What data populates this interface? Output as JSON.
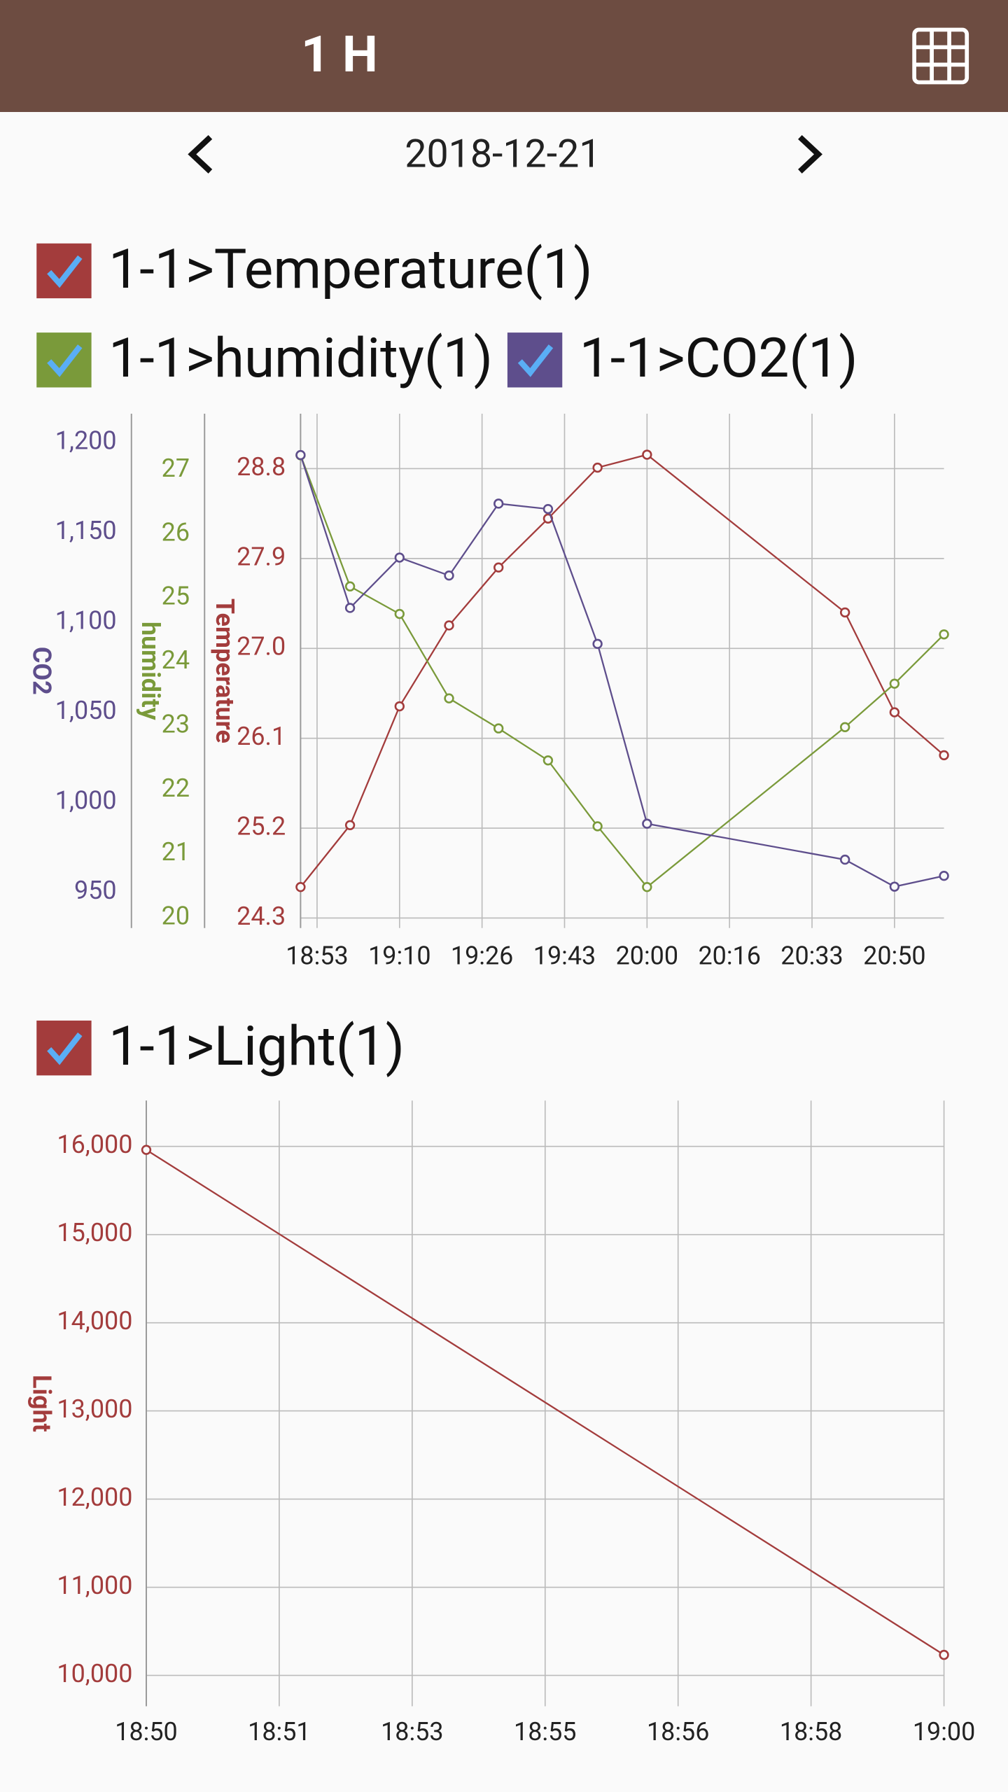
{
  "header": {
    "title": "1 H"
  },
  "date": "2018-12-21",
  "chart_data": [
    {
      "type": "line",
      "x": [
        "18:50",
        "19:00",
        "19:10",
        "19:20",
        "19:30",
        "19:40",
        "19:50",
        "20:00",
        "20:40",
        "20:50",
        "21:00"
      ],
      "xlim": [
        "18:50",
        "21:00"
      ],
      "xticks": [
        {
          "value": "18:53:20",
          "label": "18:53"
        },
        "19:10",
        {
          "value": "19:26:40",
          "label": "19:26"
        },
        {
          "value": "19:43:20",
          "label": "19:43"
        },
        "20:00",
        {
          "value": "20:16:40",
          "label": "20:16"
        },
        {
          "value": "20:33:20",
          "label": "20:33"
        },
        "20:50"
      ],
      "grid": true,
      "series": [
        {
          "name": "1-1>Temperature(1)",
          "color": "#a33c3c",
          "axis_label": "Temperature",
          "ylim": [
            24.2,
            29.35
          ],
          "yticks": [
            24.3,
            25.2,
            26.1,
            {
              "value": 27,
              "label": "27.0"
            },
            27.9,
            28.8
          ],
          "values": [
            24.61,
            25.23,
            26.42,
            27.23,
            27.81,
            28.3,
            28.81,
            28.94,
            27.36,
            26.36,
            25.93
          ]
        },
        {
          "name": "1-1>humidity(1)",
          "color": "#7a9a3a",
          "axis_label": "humidity",
          "ylim": [
            19.84,
            27.88
          ],
          "yticks": [
            20,
            21,
            22,
            23,
            24,
            25,
            26,
            27
          ],
          "values": [
            27.23,
            25.18,
            24.75,
            23.43,
            22.96,
            22.46,
            21.43,
            20.48,
            22.98,
            23.66,
            24.43
          ]
        },
        {
          "name": "1-1>CO2(1)",
          "color": "#5e4e8c",
          "axis_label": "CO2",
          "ylim": [
            930,
            1216
          ],
          "yticks": [
            950,
            {
              "value": 1000,
              "label": "1,000"
            },
            {
              "value": 1050,
              "label": "1,050"
            },
            {
              "value": 1100,
              "label": "1,100"
            },
            {
              "value": 1150,
              "label": "1,150"
            },
            {
              "value": 1200,
              "label": "1,200"
            }
          ],
          "values": [
            1193,
            1108,
            1136,
            1126,
            1166,
            1163,
            1088,
            988,
            968,
            953,
            959
          ]
        }
      ]
    },
    {
      "type": "line",
      "x": [
        "18:50",
        "19:00"
      ],
      "xlim": [
        "18:50",
        "19:00"
      ],
      "xticks": [
        "18:50",
        {
          "value": "18:51:40",
          "label": "18:51"
        },
        {
          "value": "18:53:20",
          "label": "18:53"
        },
        "18:55",
        {
          "value": "18:56:40",
          "label": "18:56"
        },
        {
          "value": "18:58:20",
          "label": "18:58"
        },
        "19:00"
      ],
      "grid": true,
      "series": [
        {
          "name": "1-1>Light(1)",
          "color": "#a33c3c",
          "axis_label": "Light",
          "ylim": [
            9650,
            16520
          ],
          "yticks": [
            {
              "value": 10000,
              "label": "10,000"
            },
            {
              "value": 11000,
              "label": "11,000"
            },
            {
              "value": 12000,
              "label": "12,000"
            },
            {
              "value": 13000,
              "label": "13,000"
            },
            {
              "value": 14000,
              "label": "14,000"
            },
            {
              "value": 15000,
              "label": "15,000"
            },
            {
              "value": 16000,
              "label": "16,000"
            }
          ],
          "values": [
            15961,
            10233
          ]
        }
      ]
    }
  ]
}
